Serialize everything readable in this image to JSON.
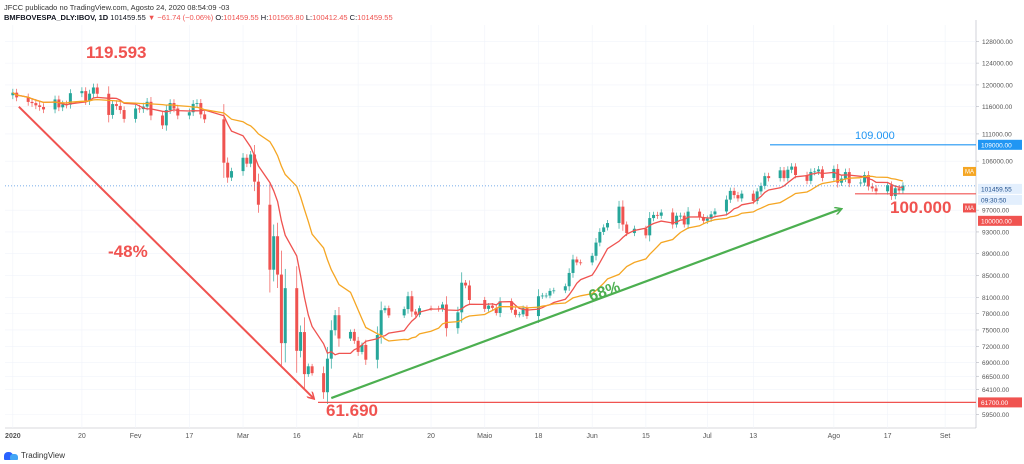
{
  "header": {
    "publisher_line": "JFCC publicado no TradingView.com, Agosto 24, 2020 08:54:09 -03",
    "symbol": "BMFBOVESPA_DLY:IBOV, 1D",
    "last": "101459.55",
    "change": "▼ −61.74 (−0.06%)",
    "o_label": "O:",
    "o_value": "101459.55",
    "h_label": "H:",
    "h_value": "101565.80",
    "l_label": "L:",
    "l_value": "100412.45",
    "c_label": "C:",
    "c_value": "101459.55"
  },
  "brand": "TradingView",
  "colors": {
    "up": "#26a69a",
    "down": "#ef5350",
    "ma_fast": "#ef5350",
    "ma_slow": "#f5a623",
    "annotation_red": "#f05350",
    "annotation_green": "#4caf50",
    "annotation_blue": "#2196f3",
    "current_price": "#4a90e2"
  },
  "chart_data": {
    "type": "candlestick",
    "x": [
      "2020-01-02",
      "2020-01-03",
      "2020-01-06",
      "2020-01-07",
      "2020-01-08",
      "2020-01-09",
      "2020-01-10",
      "2020-01-13",
      "2020-01-14",
      "2020-01-15",
      "2020-01-16",
      "2020-01-17",
      "2020-01-20",
      "2020-01-21",
      "2020-01-22",
      "2020-01-23",
      "2020-01-24",
      "2020-01-27",
      "2020-01-28",
      "2020-01-29",
      "2020-01-30",
      "2020-01-31",
      "2020-02-03",
      "2020-02-04",
      "2020-02-05",
      "2020-02-06",
      "2020-02-07",
      "2020-02-10",
      "2020-02-11",
      "2020-02-12",
      "2020-02-13",
      "2020-02-14",
      "2020-02-17",
      "2020-02-18",
      "2020-02-19",
      "2020-02-20",
      "2020-02-21",
      "2020-02-26",
      "2020-02-27",
      "2020-02-28",
      "2020-03-02",
      "2020-03-03",
      "2020-03-04",
      "2020-03-05",
      "2020-03-06",
      "2020-03-09",
      "2020-03-10",
      "2020-03-11",
      "2020-03-12",
      "2020-03-13",
      "2020-03-16",
      "2020-03-17",
      "2020-03-18",
      "2020-03-19",
      "2020-03-20",
      "2020-03-23",
      "2020-03-24",
      "2020-03-25",
      "2020-03-26",
      "2020-03-27",
      "2020-03-30",
      "2020-03-31",
      "2020-04-01",
      "2020-04-02",
      "2020-04-03",
      "2020-04-06",
      "2020-04-07",
      "2020-04-08",
      "2020-04-09",
      "2020-04-13",
      "2020-04-14",
      "2020-04-15",
      "2020-04-16",
      "2020-04-17",
      "2020-04-20",
      "2020-04-22",
      "2020-04-23",
      "2020-04-24",
      "2020-04-27",
      "2020-04-28",
      "2020-04-29",
      "2020-04-30",
      "2020-05-04",
      "2020-05-05",
      "2020-05-06",
      "2020-05-07",
      "2020-05-08",
      "2020-05-11",
      "2020-05-12",
      "2020-05-13",
      "2020-05-14",
      "2020-05-15",
      "2020-05-18",
      "2020-05-19",
      "2020-05-20",
      "2020-05-21",
      "2020-05-22",
      "2020-05-25",
      "2020-05-26",
      "2020-05-27",
      "2020-05-28",
      "2020-05-29",
      "2020-06-01",
      "2020-06-02",
      "2020-06-03",
      "2020-06-04",
      "2020-06-05",
      "2020-06-08",
      "2020-06-09",
      "2020-06-10",
      "2020-06-12",
      "2020-06-15",
      "2020-06-16",
      "2020-06-17",
      "2020-06-18",
      "2020-06-19",
      "2020-06-22",
      "2020-06-23",
      "2020-06-24",
      "2020-06-25",
      "2020-06-26",
      "2020-06-29",
      "2020-06-30",
      "2020-07-01",
      "2020-07-02",
      "2020-07-03",
      "2020-07-06",
      "2020-07-07",
      "2020-07-08",
      "2020-07-09",
      "2020-07-10",
      "2020-07-13",
      "2020-07-14",
      "2020-07-15",
      "2020-07-16",
      "2020-07-17",
      "2020-07-20",
      "2020-07-21",
      "2020-07-22",
      "2020-07-23",
      "2020-07-24",
      "2020-07-27",
      "2020-07-28",
      "2020-07-29",
      "2020-07-30",
      "2020-07-31",
      "2020-08-03",
      "2020-08-04",
      "2020-08-05",
      "2020-08-06",
      "2020-08-07",
      "2020-08-10",
      "2020-08-11",
      "2020-08-12",
      "2020-08-13",
      "2020-08-14",
      "2020-08-17",
      "2020-08-18",
      "2020-08-19",
      "2020-08-20",
      "2020-08-21"
    ],
    "close": [
      118573,
      117707,
      116878,
      116662,
      116247,
      115947,
      115503,
      117325,
      115885,
      116414,
      116380,
      118478,
      118861,
      117026,
      118391,
      119528,
      118376,
      114482,
      116479,
      116143,
      115384,
      113761,
      115665,
      115557,
      116028,
      116898,
      114382,
      112570,
      115371,
      116674,
      115662,
      114381,
      114977,
      116518,
      116674,
      114586,
      113681,
      105718,
      102984,
      104172,
      106625,
      105537,
      107224,
      102233,
      97997,
      86067,
      92214,
      85171,
      72583,
      82678,
      71168,
      74617,
      66895,
      68332,
      67069,
      63570,
      69729,
      74955,
      77710,
      73429,
      74640,
      73020,
      70967,
      72253,
      69538,
      74073,
      78625,
      79008,
      77682,
      78831,
      81195,
      78386,
      77812,
      78990,
      78973,
      78817,
      79673,
      75331,
      78238,
      83681,
      83171,
      80506,
      78876,
      79471,
      79064,
      78119,
      80263,
      78712,
      77772,
      77871,
      79011,
      77556,
      81194,
      81319,
      81320,
      82173,
      82264,
      83027,
      85468,
      87946,
      87403,
      87402,
      88620,
      91046,
      93002,
      93829,
      94637,
      97645,
      94365,
      92796,
      93590,
      92375,
      95547,
      96125,
      95975,
      96572,
      94377,
      95975,
      95983,
      94377,
      96734,
      95735,
      95055,
      95438,
      96235,
      96765,
      98937,
      100540,
      99770,
      99160,
      100031,
      98697,
      100440,
      101459,
      103252,
      102889,
      104310,
      102888,
      104426,
      105000,
      103447,
      102382,
      104017,
      104109,
      104477,
      102912,
      104570,
      102043,
      102801,
      103994,
      101946,
      102065,
      103444,
      101353,
      101000,
      100461,
      101591,
      99595,
      101016,
      100604,
      101521
    ],
    "annotations": {
      "peak_label": "119.593",
      "trough_label": "61.690",
      "drop_label": "-48%",
      "rise_label": "68%",
      "resistance_label": "109.000",
      "support_label": "100.000"
    },
    "price_axis_ticks": [
      "128000.00",
      "124000.00",
      "120000.00",
      "116000.00",
      "111000.00",
      "106000.00",
      "97000.00",
      "93000.00",
      "89000.00",
      "85000.00",
      "81000.00",
      "78000.00",
      "75000.00",
      "72000.00",
      "69000.00",
      "66500.00",
      "64100.00",
      "59500.00"
    ],
    "price_badges": {
      "resistance": "109000.00",
      "last": "101459.55",
      "countdown": "09:30:50",
      "support": "100000.00",
      "trough": "61700.00",
      "ma_tag_1": "MA",
      "ma_tag_2": "MA"
    },
    "time_axis_labels": [
      "2020",
      "20",
      "Fev",
      "17",
      "Mar",
      "16",
      "Abr",
      "20",
      "Maio",
      "18",
      "Jun",
      "15",
      "Jul",
      "13",
      "Ago",
      "17",
      "Set"
    ],
    "ylim": [
      57000,
      131000
    ],
    "grid": true,
    "legend": "none"
  }
}
